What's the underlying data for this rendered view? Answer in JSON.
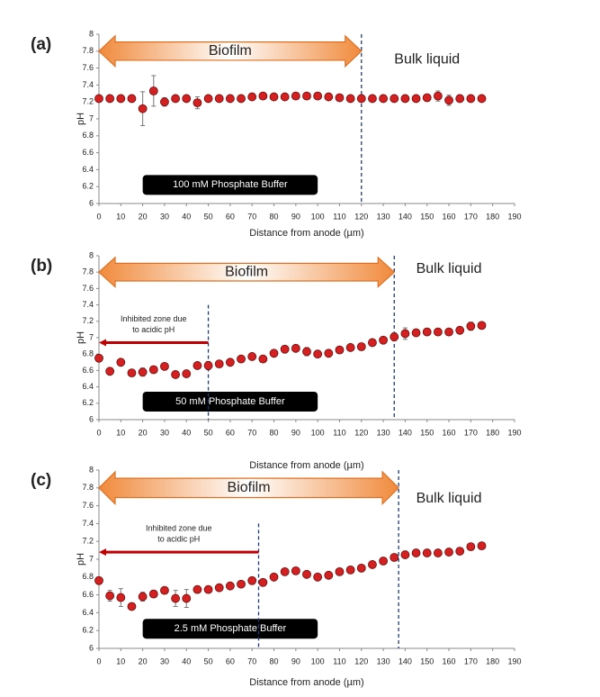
{
  "chart_data": [
    {
      "type": "scatter",
      "panel_label": "(a)",
      "xlabel": "Distance from anode (µm)",
      "ylabel": "pH",
      "region_labels": [
        "Biofilm",
        "Bulk liquid"
      ],
      "buffer_label": "100 mM Phosphate Buffer",
      "xlim": [
        0,
        190
      ],
      "ylim": [
        6,
        8
      ],
      "xticks": [
        0,
        10,
        20,
        30,
        40,
        50,
        60,
        70,
        80,
        90,
        100,
        110,
        120,
        130,
        140,
        150,
        160,
        170,
        180,
        190
      ],
      "yticks": [
        6,
        6.2,
        6.4,
        6.6,
        6.8,
        7,
        7.2,
        7.4,
        7.6,
        7.8,
        8
      ],
      "boundary": 120,
      "color": "#d42020",
      "x": [
        0,
        5,
        10,
        15,
        20,
        25,
        30,
        35,
        40,
        45,
        50,
        55,
        60,
        65,
        70,
        75,
        80,
        85,
        90,
        95,
        100,
        105,
        110,
        115,
        120,
        125,
        130,
        135,
        140,
        145,
        150,
        155,
        160,
        165,
        170,
        175
      ],
      "values": [
        7.24,
        7.24,
        7.24,
        7.24,
        7.12,
        7.33,
        7.2,
        7.24,
        7.24,
        7.19,
        7.24,
        7.24,
        7.24,
        7.24,
        7.26,
        7.27,
        7.26,
        7.26,
        7.27,
        7.27,
        7.27,
        7.26,
        7.25,
        7.24,
        7.24,
        7.24,
        7.24,
        7.24,
        7.24,
        7.24,
        7.25,
        7.27,
        7.22,
        7.24,
        7.24,
        7.24
      ],
      "errors": [
        0.02,
        0.02,
        0.02,
        0.02,
        0.2,
        0.18,
        0.05,
        0.02,
        0.02,
        0.07,
        0.02,
        0.02,
        0.02,
        0.02,
        0.03,
        0.03,
        0.03,
        0.03,
        0.03,
        0.03,
        0.03,
        0.03,
        0.02,
        0.02,
        0.02,
        0.02,
        0.02,
        0.02,
        0.02,
        0.02,
        0.02,
        0.06,
        0.06,
        0.02,
        0.02,
        0.02
      ]
    },
    {
      "type": "scatter",
      "panel_label": "(b)",
      "xlabel": "Distance from anode (µm)",
      "ylabel": "pH",
      "region_labels": [
        "Biofilm",
        "Bulk liquid"
      ],
      "buffer_label": "50 mM Phosphate Buffer",
      "zone_label": [
        "Inhibited zone due",
        "to acidic pH"
      ],
      "zone_end": 50,
      "xlim": [
        0,
        190
      ],
      "ylim": [
        6,
        8
      ],
      "xticks": [
        0,
        10,
        20,
        30,
        40,
        50,
        60,
        70,
        80,
        90,
        100,
        110,
        120,
        130,
        140,
        150,
        160,
        170,
        180,
        190
      ],
      "yticks": [
        6,
        6.2,
        6.4,
        6.6,
        6.8,
        7,
        7.2,
        7.4,
        7.6,
        7.8,
        8
      ],
      "boundary": 135,
      "color": "#d42020",
      "x": [
        0,
        5,
        10,
        15,
        20,
        25,
        30,
        35,
        40,
        45,
        50,
        55,
        60,
        65,
        70,
        75,
        80,
        85,
        90,
        95,
        100,
        105,
        110,
        115,
        120,
        125,
        130,
        135,
        140,
        145,
        150,
        155,
        160,
        165,
        170,
        175
      ],
      "values": [
        6.75,
        6.59,
        6.7,
        6.57,
        6.58,
        6.61,
        6.65,
        6.55,
        6.56,
        6.66,
        6.66,
        6.68,
        6.7,
        6.74,
        6.77,
        6.74,
        6.81,
        6.86,
        6.87,
        6.83,
        6.8,
        6.81,
        6.85,
        6.88,
        6.89,
        6.94,
        6.97,
        7.01,
        7.05,
        7.06,
        7.07,
        7.07,
        7.07,
        7.09,
        7.14,
        7.15
      ],
      "errors": [
        0.03,
        0.02,
        0.02,
        0.04,
        0.05,
        0.04,
        0.04,
        0.04,
        0.04,
        0.04,
        0.05,
        0.04,
        0.04,
        0.04,
        0.04,
        0.04,
        0.04,
        0.04,
        0.04,
        0.05,
        0.04,
        0.04,
        0.04,
        0.04,
        0.04,
        0.04,
        0.04,
        0.05,
        0.07,
        0.04,
        0.03,
        0.03,
        0.04,
        0.04,
        0.05,
        0.04
      ]
    },
    {
      "type": "scatter",
      "panel_label": "(c)",
      "xlabel": "Distance from anode (µm)",
      "ylabel": "pH",
      "region_labels": [
        "Biofilm",
        "Bulk liquid"
      ],
      "buffer_label": "2.5 mM Phosphate Buffer",
      "zone_label": [
        "Inhibited zone due",
        "to acidic pH"
      ],
      "zone_end": 73,
      "xlim": [
        0,
        190
      ],
      "ylim": [
        6,
        8
      ],
      "xticks": [
        0,
        10,
        20,
        30,
        40,
        50,
        60,
        70,
        80,
        90,
        100,
        110,
        120,
        130,
        140,
        150,
        160,
        170,
        180,
        190
      ],
      "yticks": [
        6,
        6.2,
        6.4,
        6.6,
        6.8,
        7,
        7.2,
        7.4,
        7.6,
        7.8,
        8
      ],
      "boundary": 137,
      "color": "#d42020",
      "x": [
        0,
        5,
        10,
        15,
        20,
        25,
        30,
        35,
        40,
        45,
        50,
        55,
        60,
        65,
        70,
        75,
        80,
        85,
        90,
        95,
        100,
        105,
        110,
        115,
        120,
        125,
        130,
        135,
        140,
        145,
        150,
        155,
        160,
        165,
        170,
        175
      ],
      "values": [
        6.76,
        6.59,
        6.57,
        6.47,
        6.58,
        6.61,
        6.65,
        6.56,
        6.56,
        6.66,
        6.66,
        6.68,
        6.7,
        6.72,
        6.76,
        6.74,
        6.8,
        6.86,
        6.87,
        6.83,
        6.8,
        6.82,
        6.86,
        6.88,
        6.9,
        6.94,
        6.98,
        7.02,
        7.05,
        7.07,
        7.07,
        7.07,
        7.08,
        7.09,
        7.14,
        7.15
      ],
      "errors": [
        0.02,
        0.06,
        0.1,
        0.02,
        0.05,
        0.04,
        0.02,
        0.09,
        0.1,
        0.04,
        0.02,
        0.02,
        0.02,
        0.02,
        0.02,
        0.02,
        0.02,
        0.02,
        0.02,
        0.02,
        0.02,
        0.02,
        0.02,
        0.02,
        0.02,
        0.02,
        0.02,
        0.02,
        0.02,
        0.02,
        0.02,
        0.02,
        0.02,
        0.02,
        0.02,
        0.02
      ]
    }
  ]
}
